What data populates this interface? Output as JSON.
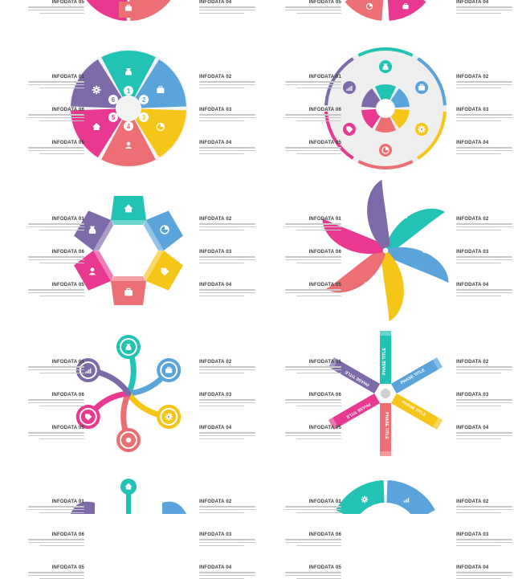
{
  "infodata_labels": [
    "INFODATA 01",
    "INFODATA 02",
    "INFODATA 03",
    "INFODATA 04",
    "INFODATA 05",
    "INFODATA 06"
  ],
  "circle_numbers": [
    "1",
    "2",
    "3",
    "4",
    "5",
    "6"
  ],
  "phase_title": "PHASE TITLE",
  "colors": {
    "teal": "#22c3b4",
    "blue": "#5aa3db",
    "yellow": "#f5c518",
    "coral": "#ec6f74",
    "pink": "#e8388f",
    "purple": "#7d6aa8",
    "grey": "#e9e9e9"
  },
  "icons": [
    "money-bag-icon",
    "briefcase-icon",
    "pie-chart-icon",
    "gear-icon",
    "user-icon",
    "home-icon",
    "chart-icon",
    "tag-icon",
    "coins-icon"
  ]
}
